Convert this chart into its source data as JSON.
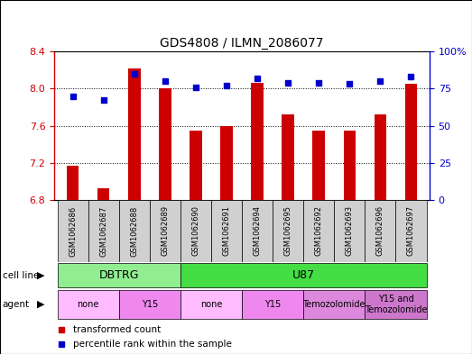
{
  "title": "GDS4808 / ILMN_2086077",
  "samples": [
    "GSM1062686",
    "GSM1062687",
    "GSM1062688",
    "GSM1062689",
    "GSM1062690",
    "GSM1062691",
    "GSM1062694",
    "GSM1062695",
    "GSM1062692",
    "GSM1062693",
    "GSM1062696",
    "GSM1062697"
  ],
  "transformed_count": [
    7.17,
    6.93,
    8.22,
    8.0,
    7.55,
    7.6,
    8.06,
    7.72,
    7.55,
    7.55,
    7.72,
    8.05
  ],
  "percentile_rank": [
    70,
    67,
    85,
    80,
    76,
    77,
    82,
    79,
    79,
    78,
    80,
    83
  ],
  "ylim_left": [
    6.8,
    8.4
  ],
  "ylim_right": [
    0,
    100
  ],
  "yticks_left": [
    6.8,
    7.2,
    7.6,
    8.0,
    8.4
  ],
  "yticks_right": [
    0,
    25,
    50,
    75,
    100
  ],
  "bar_color": "#cc0000",
  "dot_color": "#0000cc",
  "bar_bottom": 6.8,
  "cell_line_groups": [
    {
      "label": "DBTRG",
      "start": 0,
      "end": 3,
      "color": "#90ee90"
    },
    {
      "label": "U87",
      "start": 4,
      "end": 11,
      "color": "#44dd44"
    }
  ],
  "agent_groups": [
    {
      "label": "none",
      "start": 0,
      "end": 1
    },
    {
      "label": "Y15",
      "start": 2,
      "end": 3
    },
    {
      "label": "none",
      "start": 4,
      "end": 5
    },
    {
      "label": "Y15",
      "start": 6,
      "end": 7
    },
    {
      "label": "Temozolomide",
      "start": 8,
      "end": 9
    },
    {
      "label": "Y15 and\nTemozolomide",
      "start": 10,
      "end": 11
    }
  ],
  "agent_colors": [
    "#ffbbff",
    "#ee88ee",
    "#ffbbff",
    "#ee88ee",
    "#dd88dd",
    "#cc77cc"
  ],
  "sample_box_color": "#d0d0d0",
  "legend_red_label": "transformed count",
  "legend_blue_label": "percentile rank within the sample"
}
